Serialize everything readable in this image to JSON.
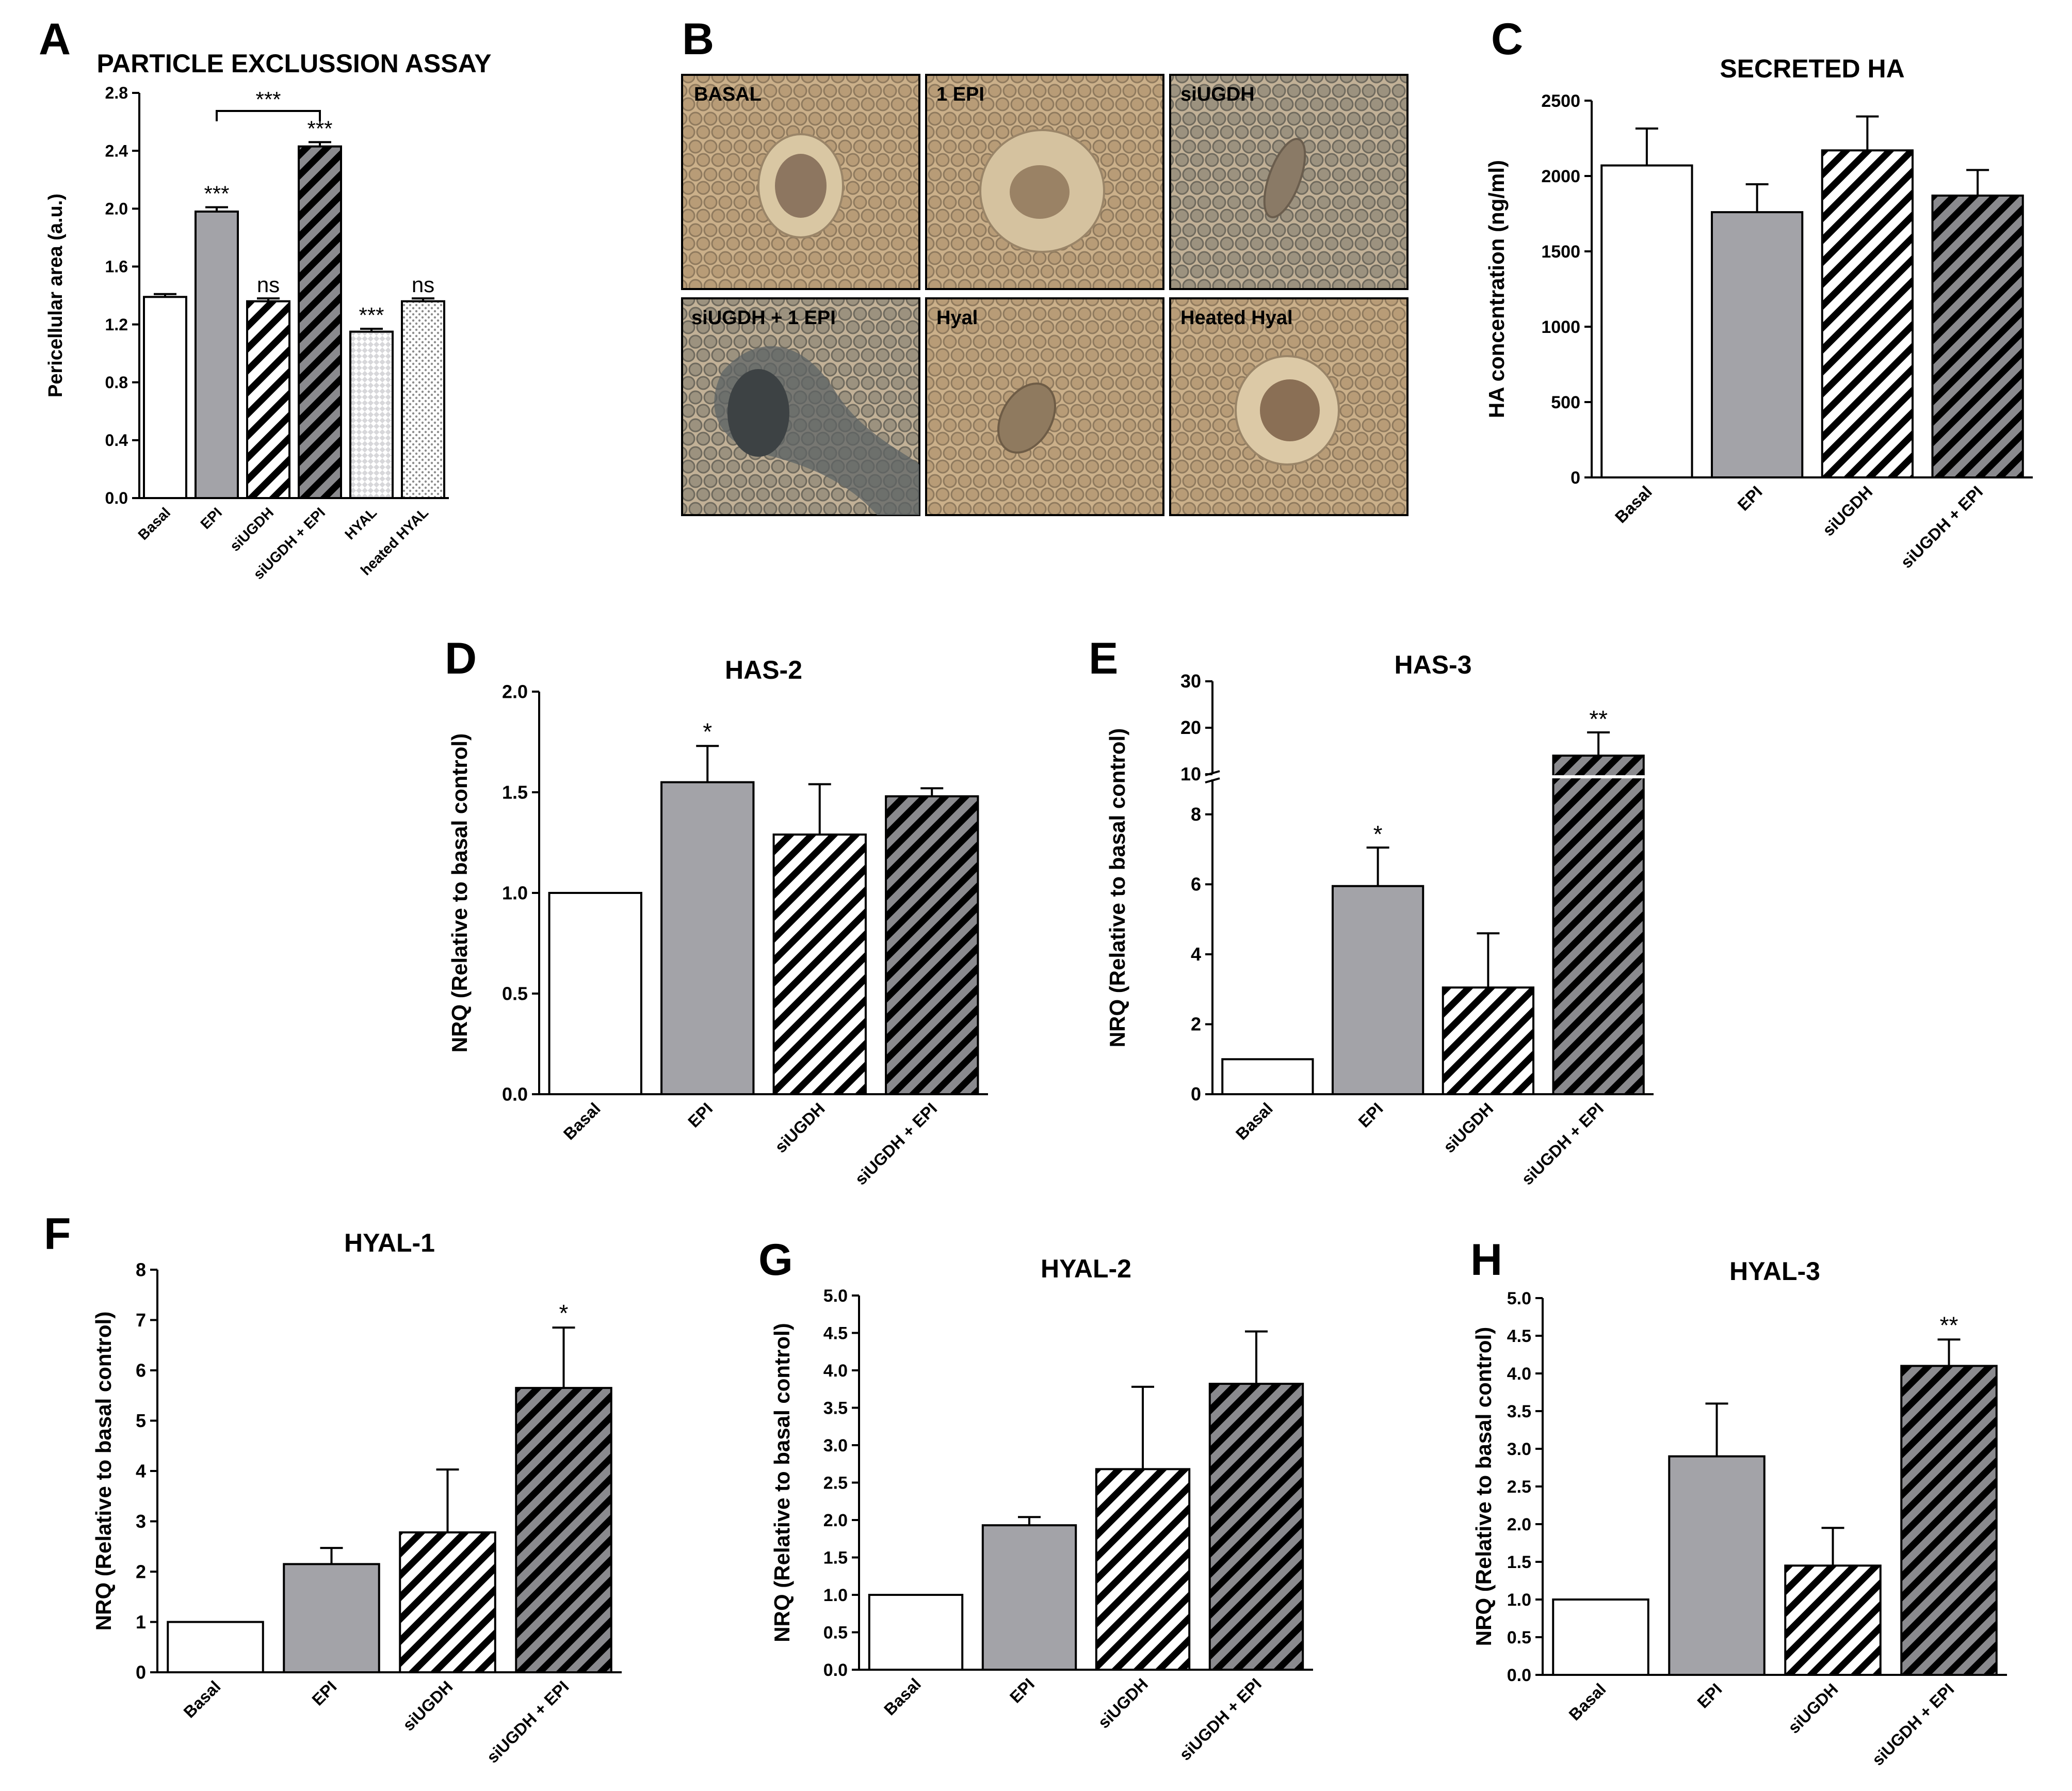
{
  "colors": {
    "basal": "#ffffff",
    "epi": "#a3a3a8",
    "hatch_light_bg": "#ffffff",
    "hatch_dark_bg": "#8a8a8e",
    "stroke": "#000000",
    "photo_base": "#c9ad86",
    "photo_cell": "#8e7a62"
  },
  "panel_a": {
    "letter": "A",
    "chart_data": {
      "type": "bar",
      "title": "PARTICLE EXCLUSSION ASSAY",
      "ylabel": "Pericellular area (a.u.)",
      "categories": [
        "Basal",
        "EPI",
        "siUGDH",
        "siUGDH + EPI",
        "HYAL",
        "heated HYAL"
      ],
      "values": [
        1.39,
        1.98,
        1.36,
        2.43,
        1.15,
        1.36
      ],
      "errors": [
        0.02,
        0.03,
        0.02,
        0.03,
        0.02,
        0.02
      ],
      "annotations": [
        "",
        "***",
        "ns",
        "***",
        "***",
        "ns"
      ],
      "bracket": {
        "from": 1,
        "to": 3,
        "label": "***"
      },
      "ylim": [
        0,
        2.8
      ],
      "yticks": [
        "0.0",
        "0.4",
        "0.8",
        "1.2",
        "1.6",
        "2.0",
        "2.4",
        "2.8"
      ],
      "patterns": [
        "white",
        "gray",
        "hatch-light",
        "hatch-dark",
        "check",
        "dots"
      ]
    }
  },
  "panel_b": {
    "letter": "B",
    "images": [
      {
        "label": "BASAL"
      },
      {
        "label": "1 EPI"
      },
      {
        "label": "siUGDH"
      },
      {
        "label": "siUGDH + 1 EPI"
      },
      {
        "label": "Hyal"
      },
      {
        "label": "Heated Hyal"
      }
    ]
  },
  "panel_c": {
    "letter": "C",
    "chart_data": {
      "type": "bar",
      "title": "SECRETED HA",
      "ylabel": "HA concentration (ng/ml)",
      "categories": [
        "Basal",
        "EPI",
        "siUGDH",
        "siUGDH + EPI"
      ],
      "values": [
        2070,
        1760,
        2170,
        1870
      ],
      "errors": [
        245,
        185,
        225,
        170
      ],
      "ylim": [
        0,
        2500
      ],
      "yticks": [
        "0",
        "500",
        "1000",
        "1500",
        "2000",
        "2500"
      ],
      "patterns": [
        "white",
        "gray",
        "hatch-light",
        "hatch-dark"
      ]
    }
  },
  "panel_d": {
    "letter": "D",
    "chart_data": {
      "type": "bar",
      "title": "HAS-2",
      "ylabel": "NRQ (Relative to basal control)",
      "categories": [
        "Basal",
        "EPI",
        "siUGDH",
        "siUGDH + EPI"
      ],
      "values": [
        1.0,
        1.55,
        1.29,
        1.48
      ],
      "errors": [
        0,
        0.18,
        0.25,
        0.04
      ],
      "annotations": [
        "",
        "*",
        "",
        ""
      ],
      "ylim": [
        0,
        2.0
      ],
      "yticks": [
        "0.0",
        "0.5",
        "1.0",
        "1.5",
        "2.0"
      ],
      "patterns": [
        "white",
        "gray",
        "hatch-light",
        "hatch-dark"
      ]
    }
  },
  "panel_e": {
    "letter": "E",
    "chart_data": {
      "type": "bar",
      "title": "HAS-3",
      "ylabel": "NRQ (Relative to basal control)",
      "categories": [
        "Basal",
        "EPI",
        "siUGDH",
        "siUGDH + EPI"
      ],
      "values": [
        1.0,
        5.95,
        3.05,
        14.0
      ],
      "errors": [
        0,
        1.1,
        1.55,
        5.0
      ],
      "annotations": [
        "",
        "*",
        "",
        "**"
      ],
      "axis_break": {
        "lower": [
          0,
          9
        ],
        "upper": [
          10,
          30
        ]
      },
      "yticks_lower": [
        "0",
        "2",
        "4",
        "6",
        "8"
      ],
      "yticks_upper": [
        "10",
        "20",
        "30"
      ],
      "patterns": [
        "white",
        "gray",
        "hatch-light",
        "hatch-dark"
      ]
    }
  },
  "panel_f": {
    "letter": "F",
    "chart_data": {
      "type": "bar",
      "title": "HYAL-1",
      "ylabel": "NRQ (Relative to basal control)",
      "categories": [
        "Basal",
        "EPI",
        "siUGDH",
        "siUGDH + EPI"
      ],
      "values": [
        1.0,
        2.15,
        2.78,
        5.65
      ],
      "errors": [
        0,
        0.32,
        1.25,
        1.2
      ],
      "annotations": [
        "",
        "",
        "",
        "*"
      ],
      "ylim": [
        0,
        8
      ],
      "yticks": [
        "0",
        "1",
        "2",
        "3",
        "4",
        "5",
        "6",
        "7",
        "8"
      ],
      "patterns": [
        "white",
        "gray",
        "hatch-light",
        "hatch-dark"
      ]
    }
  },
  "panel_g": {
    "letter": "G",
    "chart_data": {
      "type": "bar",
      "title": "HYAL-2",
      "ylabel": "NRQ (Relative to basal control)",
      "categories": [
        "Basal",
        "EPI",
        "siUGDH",
        "siUGDH + EPI"
      ],
      "values": [
        1.0,
        1.93,
        2.68,
        3.82
      ],
      "errors": [
        0,
        0.11,
        1.1,
        0.7
      ],
      "annotations": [
        "",
        "",
        "",
        ""
      ],
      "ylim": [
        0,
        5.0
      ],
      "yticks": [
        "0.0",
        "0.5",
        "1.0",
        "1.5",
        "2.0",
        "2.5",
        "3.0",
        "3.5",
        "4.0",
        "4.5",
        "5.0"
      ],
      "patterns": [
        "white",
        "gray",
        "hatch-light",
        "hatch-dark"
      ]
    }
  },
  "panel_h": {
    "letter": "H",
    "chart_data": {
      "type": "bar",
      "title": "HYAL-3",
      "ylabel": "NRQ (Relative to basal control)",
      "categories": [
        "Basal",
        "EPI",
        "siUGDH",
        "siUGDH + EPI"
      ],
      "values": [
        1.0,
        2.9,
        1.45,
        4.1
      ],
      "errors": [
        0,
        0.7,
        0.5,
        0.35
      ],
      "annotations": [
        "",
        "",
        "",
        "**"
      ],
      "ylim": [
        0,
        5.0
      ],
      "yticks": [
        "0.0",
        "0.5",
        "1.0",
        "1.5",
        "2.0",
        "2.5",
        "3.0",
        "3.5",
        "4.0",
        "4.5",
        "5.0"
      ],
      "patterns": [
        "white",
        "gray",
        "hatch-light",
        "hatch-dark"
      ]
    }
  }
}
